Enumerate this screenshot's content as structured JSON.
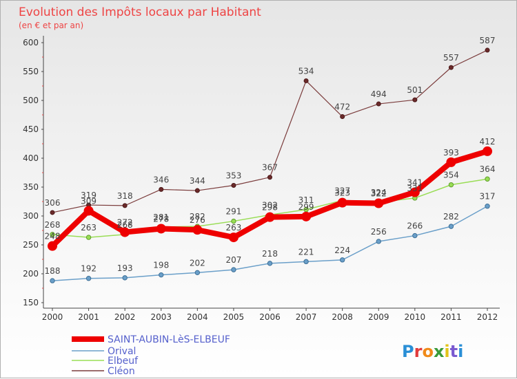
{
  "chart_data": {
    "type": "line",
    "title": "Evolution des Impôts locaux par Habitant",
    "subtitle": "(en € et par an)",
    "x": [
      2000,
      2001,
      2002,
      2003,
      2004,
      2005,
      2006,
      2007,
      2008,
      2009,
      2010,
      2011,
      2012
    ],
    "ylim": [
      150,
      600
    ],
    "yticks": [
      150,
      200,
      250,
      300,
      350,
      400,
      450,
      500,
      550,
      600
    ],
    "grid": false,
    "legend_position": "bottom-left",
    "series": [
      {
        "name": "SAINT-AUBIN-LèS-ELBEUF",
        "color": "#ee0000",
        "values": [
          248,
          309,
          272,
          278,
          276,
          263,
          298,
          299,
          323,
          322,
          341,
          393,
          412
        ]
      },
      {
        "name": "Orival",
        "color": "#6a9fc9",
        "values": [
          188,
          192,
          193,
          198,
          202,
          207,
          218,
          221,
          224,
          256,
          266,
          282,
          317
        ]
      },
      {
        "name": "Elbeuf",
        "color": "#99dd55",
        "values": [
          268,
          263,
          268,
          281,
          282,
          291,
          302,
          311,
          327,
          324,
          331,
          354,
          364
        ]
      },
      {
        "name": "Cléon",
        "color": "#7a3b3b",
        "values": [
          306,
          319,
          318,
          346,
          344,
          353,
          367,
          534,
          472,
          494,
          501,
          557,
          587
        ]
      }
    ],
    "point_labels": {
      "SAINT-AUBIN-LèS-ELBEUF": [
        "248",
        "309",
        "272",
        "278",
        "276",
        "263",
        "298",
        "299",
        "323",
        "322",
        "341",
        "393",
        "412"
      ],
      "Orival": [
        "188",
        "192",
        "193",
        "198",
        "202",
        "207",
        "218",
        "221",
        "224",
        "256",
        "266",
        "282",
        "317"
      ],
      "Elbeuf": [
        "268",
        "263",
        "268",
        "281",
        "282",
        "291",
        "302",
        "311",
        "327",
        "324",
        "331",
        "354",
        "364"
      ],
      "Cléon": [
        "306",
        "319",
        "318",
        "346",
        "344",
        "353",
        "367",
        "534",
        "472",
        "494",
        "501",
        "557",
        "587"
      ]
    }
  },
  "brand": {
    "logo_text": "Proxiti"
  }
}
